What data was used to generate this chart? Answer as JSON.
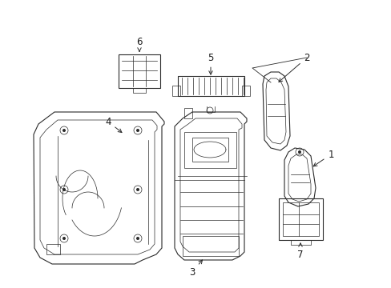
{
  "bg_color": "#ffffff",
  "line_color": "#2a2a2a",
  "label_color": "#1a1a1a",
  "fig_width": 4.89,
  "fig_height": 3.6,
  "dpi": 100,
  "label_fs": 8.5
}
